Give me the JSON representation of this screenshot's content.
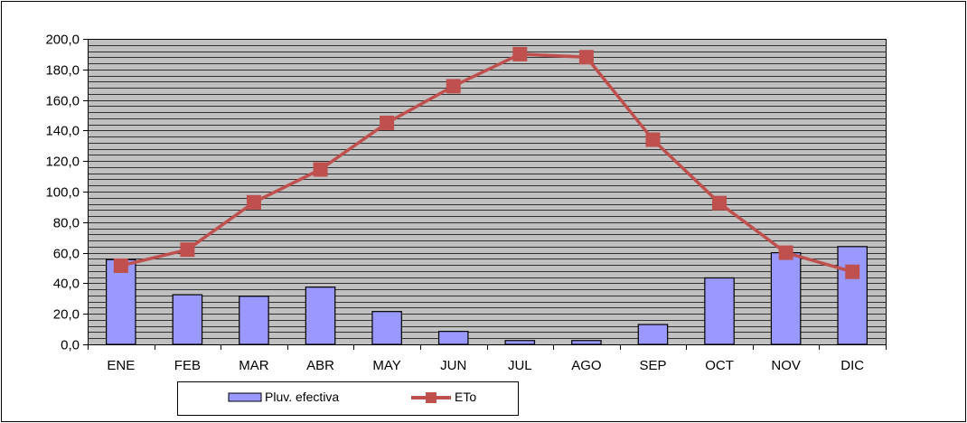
{
  "chart_data": {
    "type": "bar+line",
    "categories": [
      "ENE",
      "FEB",
      "MAR",
      "ABR",
      "MAY",
      "JUN",
      "JUL",
      "AGO",
      "SEP",
      "OCT",
      "NOV",
      "DIC"
    ],
    "series": [
      {
        "name": "Pluv. efectiva",
        "type": "bar",
        "color": "#9999ff",
        "values": [
          55.5,
          32.5,
          31.5,
          37.5,
          21.5,
          8.5,
          2.5,
          2.5,
          13.0,
          43.5,
          60.0,
          64.0
        ]
      },
      {
        "name": "ETo",
        "type": "line",
        "color": "#c0504d",
        "values": [
          51.5,
          62.0,
          93.0,
          114.5,
          145.0,
          169.0,
          190.0,
          188.0,
          134.0,
          92.5,
          60.0,
          47.5
        ]
      }
    ],
    "y_ticks": [
      "0,0",
      "20,0",
      "40,0",
      "60,0",
      "80,0",
      "100,0",
      "120,0",
      "140,0",
      "160,0",
      "180,0",
      "200,0"
    ],
    "ylim": [
      0,
      200
    ],
    "plot_background": "#c0c0c0",
    "grid": true,
    "legend_position": "bottom"
  }
}
